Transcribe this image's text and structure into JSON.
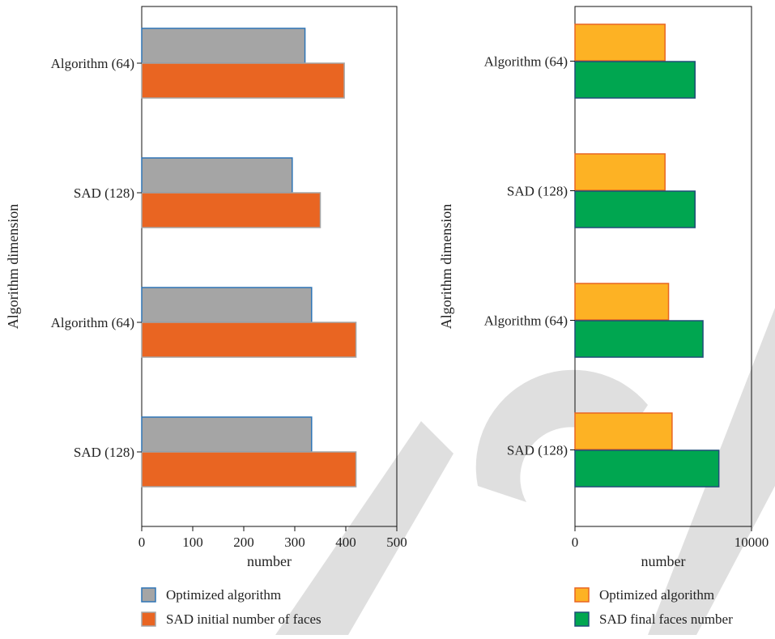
{
  "charts": [
    {
      "type": "bar",
      "orientation": "horizontal",
      "categories": [
        "Algorithm (64)",
        "SAD (128)",
        "Algorithm (64)",
        "SAD (128)"
      ],
      "series": [
        {
          "name": "Optimized algorithm",
          "values": [
            320,
            295,
            333,
            333
          ],
          "fill": "#a5a5a5",
          "stroke": "#2e75b6"
        },
        {
          "name": "SAD initial number of faces",
          "values": [
            397,
            350,
            420,
            420
          ],
          "fill": "#e96522",
          "stroke": "#a5a5a5"
        }
      ],
      "xlabel": "number",
      "ylabel": "Algorithm dimension",
      "xlim": [
        0,
        500
      ],
      "xticks": [
        "0",
        "100",
        "200",
        "300",
        "400",
        "500"
      ],
      "legend": "bottom"
    },
    {
      "type": "bar",
      "orientation": "horizontal",
      "categories": [
        "Algorithm (64)",
        "SAD (128)",
        "Algorithm (64)",
        "SAD (128)"
      ],
      "series": [
        {
          "name": "Optimized algorithm",
          "values": [
            5100,
            5100,
            5300,
            5500
          ],
          "fill": "#fdb224",
          "stroke": "#e96522"
        },
        {
          "name": "SAD final faces number",
          "values": [
            6800,
            6800,
            7250,
            8150
          ],
          "fill": "#00a650",
          "stroke": "#1f4e79"
        }
      ],
      "xlabel": "number",
      "ylabel": "Algorithm dimension",
      "xlim": [
        0,
        10000
      ],
      "xticks": [
        "0",
        "10000"
      ],
      "legend": "bottom"
    }
  ],
  "watermark": "RETRACTED"
}
